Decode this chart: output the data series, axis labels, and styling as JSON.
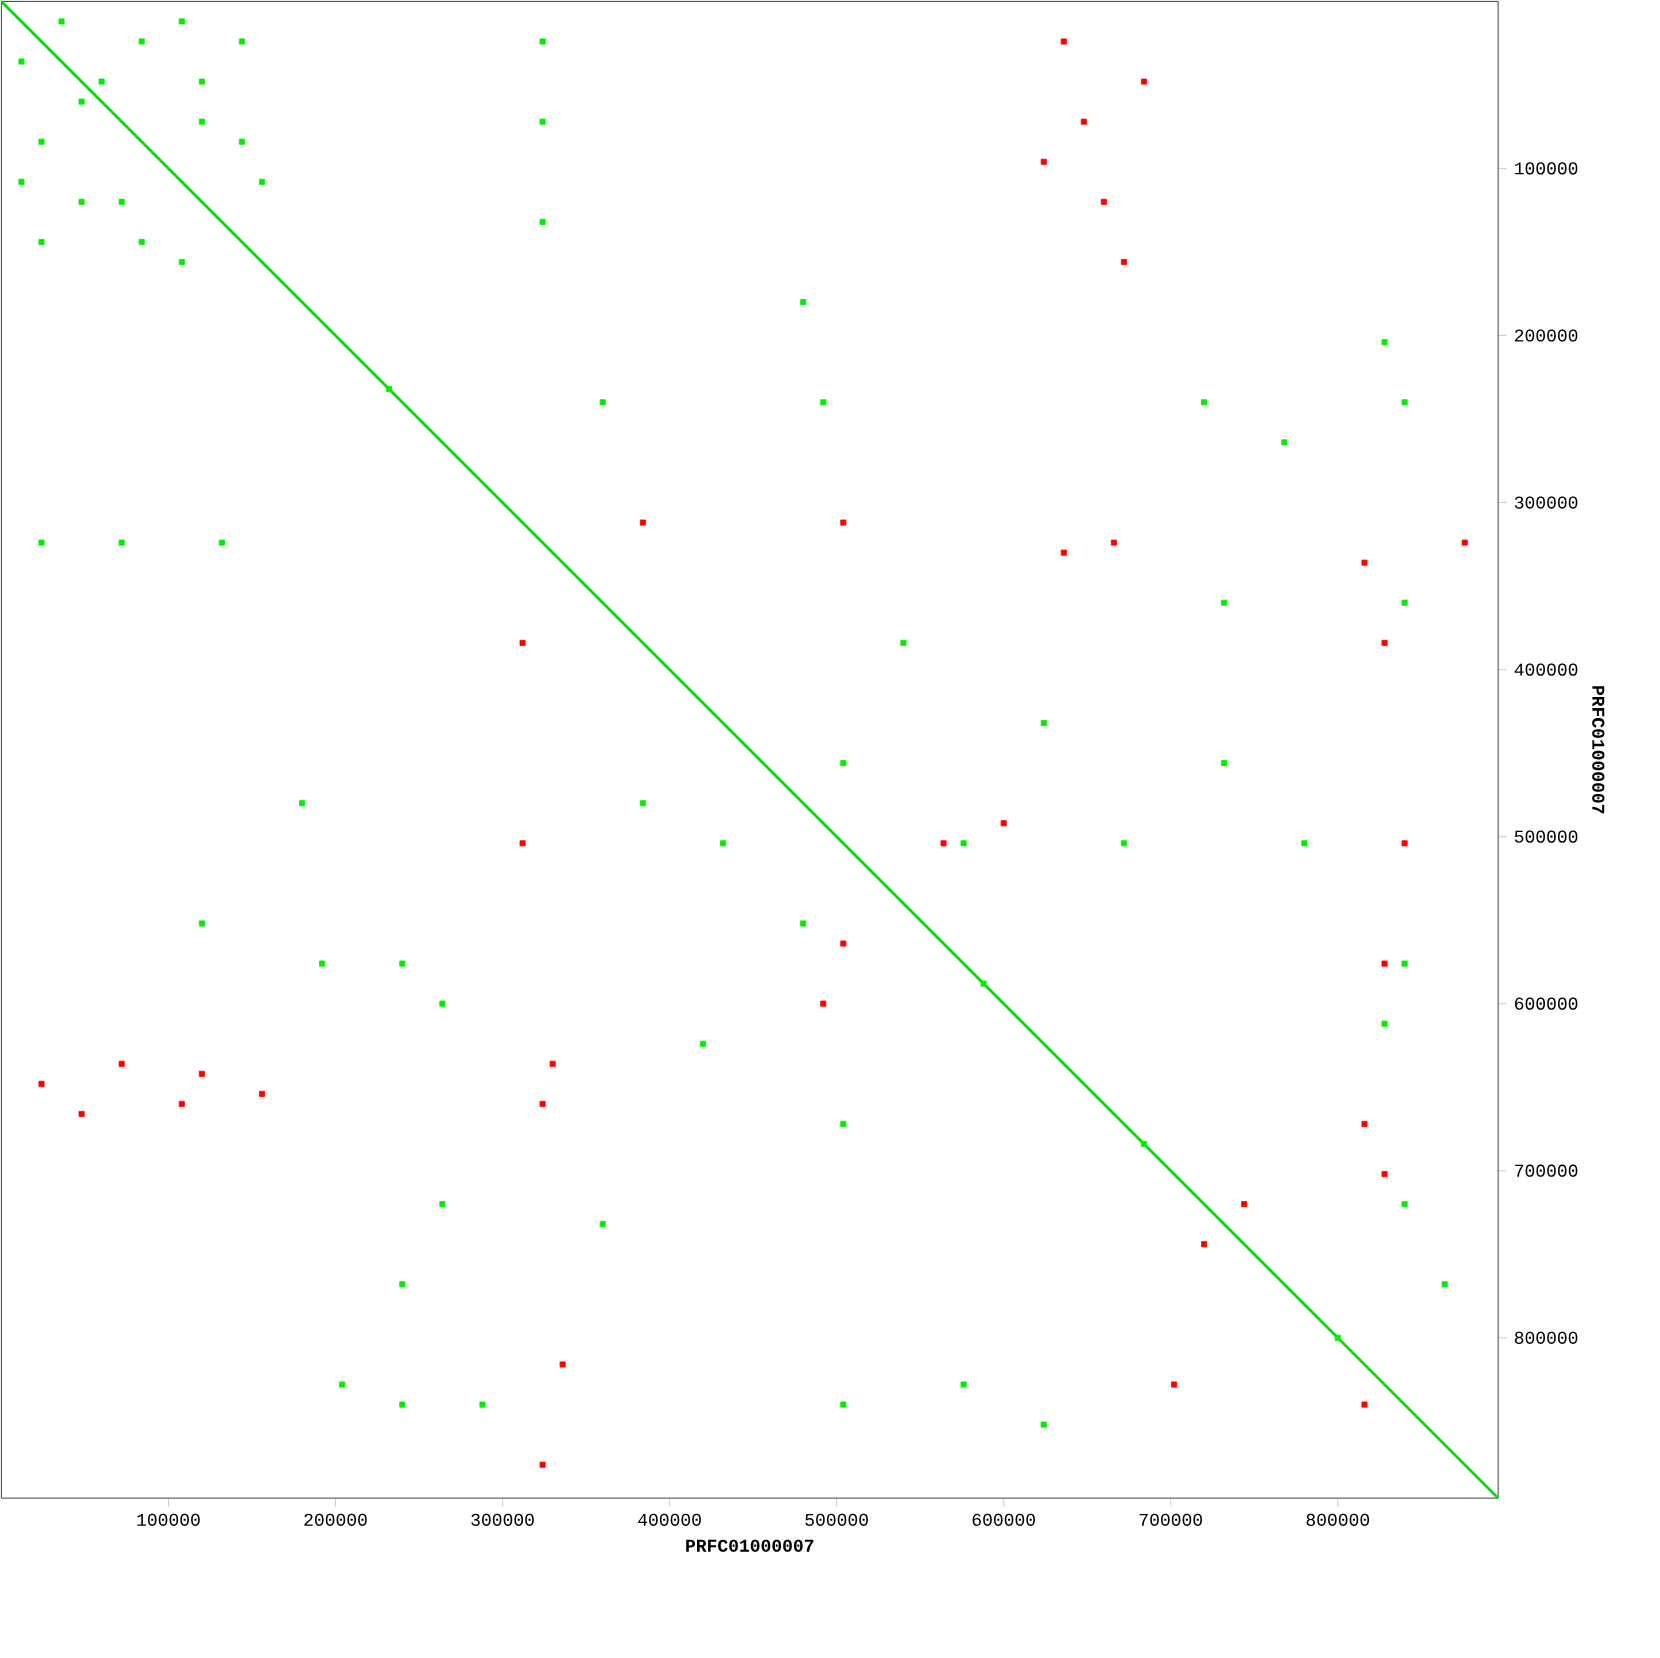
{
  "chart_data": {
    "type": "scatter",
    "xlabel": "PRFC01000007",
    "ylabel": "PRFC01000007",
    "xlim": [
      0,
      896000
    ],
    "ylim": [
      896000,
      0
    ],
    "xticks": [
      100000,
      200000,
      300000,
      400000,
      500000,
      600000,
      700000,
      800000
    ],
    "yticks": [
      100000,
      200000,
      300000,
      400000,
      500000,
      600000,
      700000,
      800000
    ],
    "grid": false,
    "series": [
      {
        "type": "line",
        "color": "#00dd00",
        "x": [
          0,
          896000
        ],
        "values": [
          0,
          896000
        ]
      },
      {
        "color": "#00ee00",
        "marker": "square",
        "x": [
          12000,
          36000,
          60000,
          48000,
          84000,
          24000,
          120000,
          48000,
          144000,
          84000,
          24000,
          144000,
          72000,
          120000,
          108000,
          156000,
          12000,
          108000,
          324000,
          324000,
          324000,
          24000,
          72000,
          132000,
          192000,
          240000,
          264000,
          384000,
          432000,
          480000,
          504000,
          576000,
          624000,
          540000,
          492000,
          360000,
          720000,
          768000,
          840000,
          264000,
          240000,
          288000,
          240000,
          504000,
          576000,
          624000,
          840000,
          864000,
          828000,
          840000,
          780000,
          732000,
          732000,
          840000,
          360000,
          420000,
          504000,
          672000,
          180000,
          480000,
          120000,
          204000,
          828000,
          232000,
          588000,
          684000,
          800000
        ],
        "values": [
          36000,
          12000,
          48000,
          60000,
          24000,
          84000,
          48000,
          120000,
          84000,
          144000,
          144000,
          24000,
          120000,
          72000,
          156000,
          108000,
          108000,
          12000,
          24000,
          72000,
          132000,
          324000,
          324000,
          324000,
          576000,
          576000,
          600000,
          480000,
          504000,
          552000,
          456000,
          504000,
          432000,
          384000,
          240000,
          240000,
          240000,
          264000,
          240000,
          720000,
          768000,
          840000,
          840000,
          840000,
          828000,
          852000,
          720000,
          768000,
          612000,
          576000,
          504000,
          456000,
          360000,
          360000,
          732000,
          624000,
          672000,
          504000,
          480000,
          180000,
          552000,
          828000,
          204000,
          232000,
          588000,
          684000,
          800000
        ]
      },
      {
        "color": "#ff0000",
        "marker": "square",
        "x": [
          636000,
          648000,
          660000,
          672000,
          624000,
          684000,
          24000,
          72000,
          120000,
          156000,
          48000,
          108000,
          636000,
          666000,
          330000,
          324000,
          828000,
          840000,
          828000,
          816000,
          816000,
          504000,
          564000,
          600000,
          492000,
          720000,
          744000,
          312000,
          384000,
          312000,
          504000,
          336000,
          816000,
          876000,
          324000,
          702000,
          828000
        ],
        "values": [
          24000,
          72000,
          120000,
          156000,
          96000,
          48000,
          648000,
          636000,
          642000,
          654000,
          666000,
          660000,
          330000,
          324000,
          636000,
          660000,
          384000,
          504000,
          576000,
          672000,
          840000,
          564000,
          504000,
          492000,
          600000,
          744000,
          720000,
          384000,
          312000,
          504000,
          312000,
          816000,
          336000,
          324000,
          876000,
          828000,
          702000
        ]
      }
    ]
  }
}
